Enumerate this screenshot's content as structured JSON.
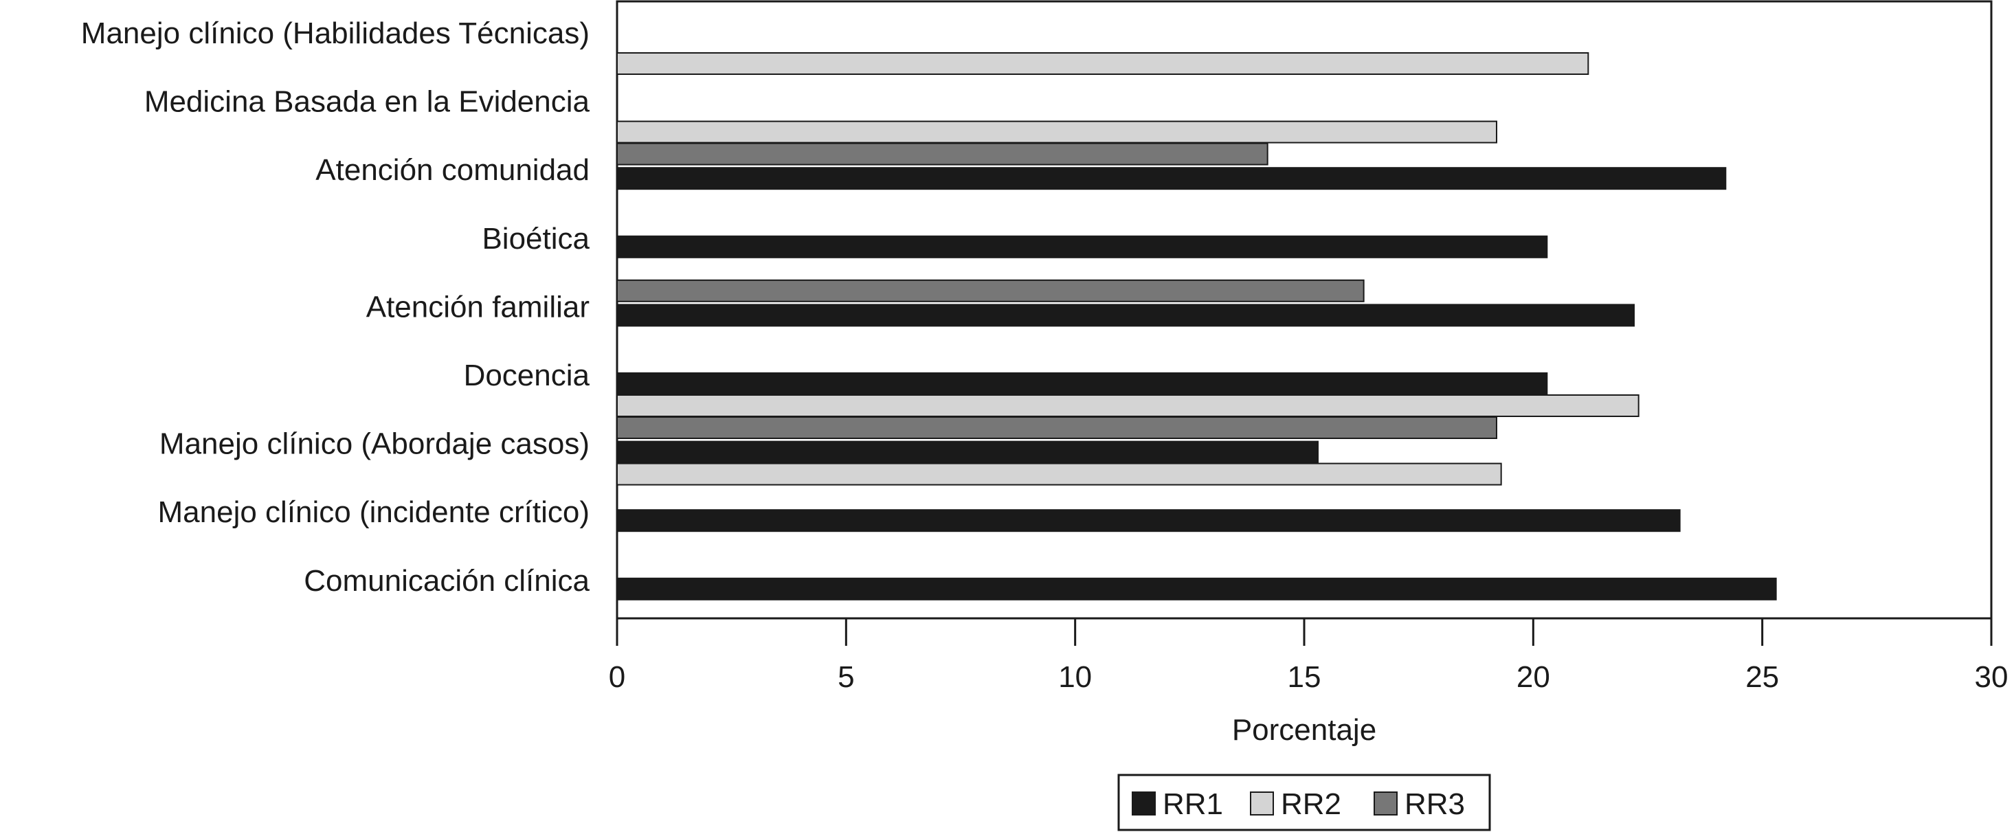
{
  "chart_data": {
    "type": "bar",
    "orientation": "horizontal",
    "categories": [
      "Manejo clínico (Habilidades Técnicas)",
      "Medicina Basada en la Evidencia",
      "Atención comunidad",
      "Bioética",
      "Atención familiar",
      "Docencia",
      "Manejo clínico (Abordaje casos)",
      "Manejo clínico (incidente crítico)",
      "Comunicación clínica"
    ],
    "series": [
      {
        "name": "RR1",
        "color": "#1a1a1a",
        "values": [
          null,
          null,
          24.2,
          20.3,
          22.2,
          20.3,
          15.3,
          23.2,
          25.3
        ]
      },
      {
        "name": "RR2",
        "color": "#d4d4d4",
        "values": [
          21.2,
          19.2,
          null,
          null,
          null,
          22.3,
          19.3,
          null,
          null
        ]
      },
      {
        "name": "RR3",
        "color": "#777777",
        "values": [
          null,
          14.2,
          null,
          16.3,
          null,
          19.2,
          null,
          null,
          null
        ]
      }
    ],
    "xlabel": "Porcentaje",
    "ylabel": "",
    "xlim": [
      0,
      30
    ],
    "xticks": [
      "0",
      "5",
      "10",
      "15",
      "20",
      "25",
      "30"
    ],
    "grid": false,
    "legend_position": "bottom-center"
  }
}
